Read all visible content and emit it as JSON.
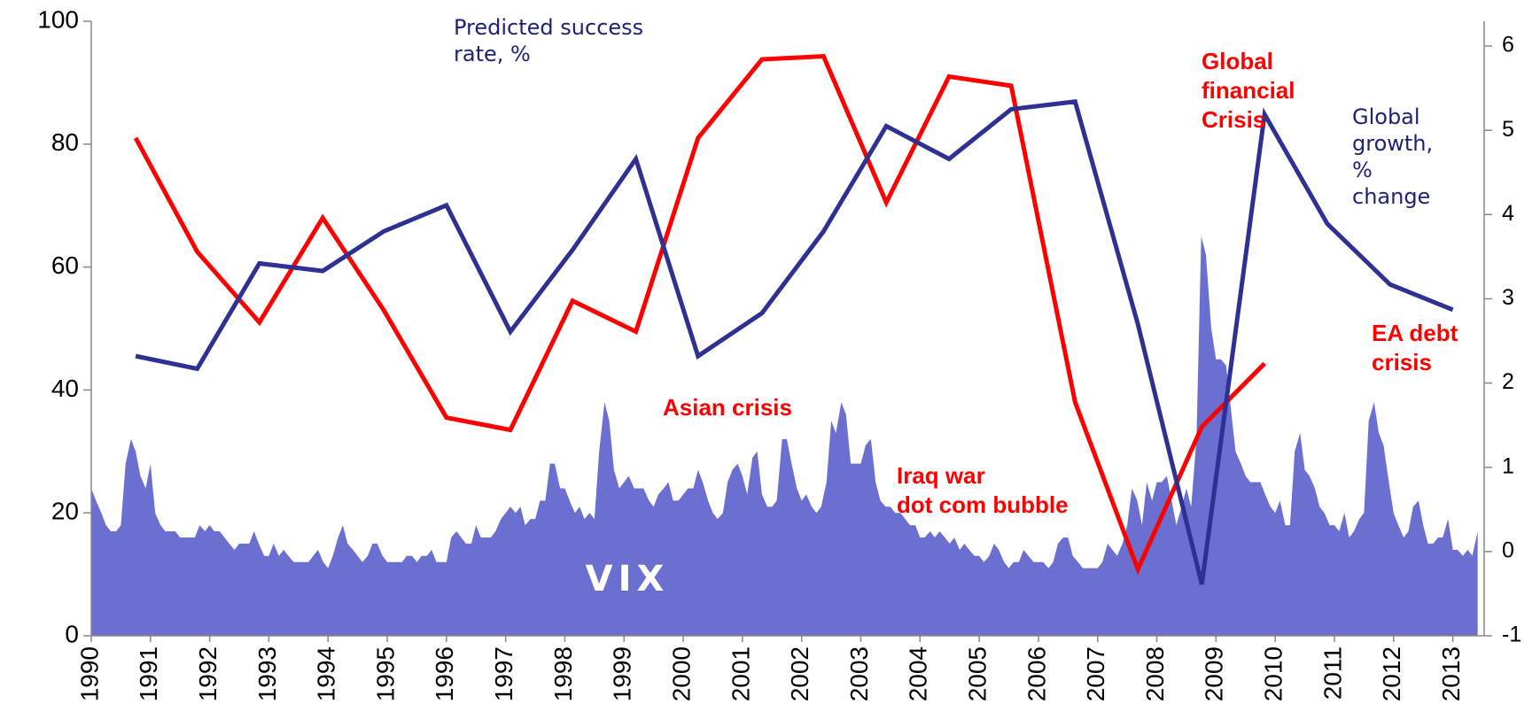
{
  "chart_data": {
    "type": "line",
    "xlim": [
      1990,
      2013.53
    ],
    "xticks": [
      1990,
      1991,
      1992,
      1993,
      1994,
      1995,
      1996,
      1997,
      1998,
      1999,
      2000,
      2001,
      2002,
      2003,
      2004,
      2005,
      2006,
      2007,
      2008,
      2009,
      2010,
      2011,
      2012,
      2013
    ],
    "ylim": [
      0,
      100
    ],
    "yticks": [
      0,
      20,
      40,
      60,
      80,
      100
    ],
    "y2lim": [
      -1,
      6
    ],
    "y2ticks": [
      -1,
      0,
      1,
      2,
      3,
      4,
      5,
      6
    ],
    "series": [
      {
        "name": "VIX",
        "type": "area",
        "color": "#6b6fcf",
        "x": [
          1990.0,
          1990.08,
          1990.17,
          1990.25,
          1990.33,
          1990.42,
          1990.5,
          1990.58,
          1990.67,
          1990.75,
          1990.83,
          1990.92,
          1991.0,
          1991.08,
          1991.17,
          1991.25,
          1991.33,
          1991.42,
          1991.5,
          1991.58,
          1991.67,
          1991.75,
          1991.83,
          1991.92,
          1992.0,
          1992.08,
          1992.17,
          1992.25,
          1992.33,
          1992.42,
          1992.5,
          1992.58,
          1992.67,
          1992.75,
          1992.83,
          1992.92,
          1993.0,
          1993.08,
          1993.17,
          1993.25,
          1993.33,
          1993.42,
          1993.5,
          1993.58,
          1993.67,
          1993.75,
          1993.83,
          1993.92,
          1994.0,
          1994.08,
          1994.17,
          1994.25,
          1994.33,
          1994.42,
          1994.5,
          1994.58,
          1994.67,
          1994.75,
          1994.83,
          1994.92,
          1995.0,
          1995.08,
          1995.17,
          1995.25,
          1995.33,
          1995.42,
          1995.5,
          1995.58,
          1995.67,
          1995.75,
          1995.83,
          1995.92,
          1996.0,
          1996.08,
          1996.17,
          1996.25,
          1996.33,
          1996.42,
          1996.5,
          1996.58,
          1996.67,
          1996.75,
          1996.83,
          1996.92,
          1997.0,
          1997.08,
          1997.17,
          1997.25,
          1997.33,
          1997.42,
          1997.5,
          1997.58,
          1997.67,
          1997.75,
          1997.83,
          1997.92,
          1998.0,
          1998.08,
          1998.17,
          1998.25,
          1998.33,
          1998.42,
          1998.5,
          1998.58,
          1998.67,
          1998.75,
          1998.83,
          1998.92,
          1999.0,
          1999.08,
          1999.17,
          1999.25,
          1999.33,
          1999.42,
          1999.5,
          1999.58,
          1999.67,
          1999.75,
          1999.83,
          1999.92,
          2000.0,
          2000.08,
          2000.17,
          2000.25,
          2000.33,
          2000.42,
          2000.5,
          2000.58,
          2000.67,
          2000.75,
          2000.83,
          2000.92,
          2001.0,
          2001.08,
          2001.17,
          2001.25,
          2001.33,
          2001.42,
          2001.5,
          2001.58,
          2001.67,
          2001.75,
          2001.83,
          2001.92,
          2002.0,
          2002.08,
          2002.17,
          2002.25,
          2002.33,
          2002.42,
          2002.5,
          2002.58,
          2002.67,
          2002.75,
          2002.83,
          2002.92,
          2003.0,
          2003.08,
          2003.17,
          2003.25,
          2003.33,
          2003.42,
          2003.5,
          2003.58,
          2003.67,
          2003.75,
          2003.83,
          2003.92,
          2004.0,
          2004.08,
          2004.17,
          2004.25,
          2004.33,
          2004.42,
          2004.5,
          2004.58,
          2004.67,
          2004.75,
          2004.83,
          2004.92,
          2005.0,
          2005.08,
          2005.17,
          2005.25,
          2005.33,
          2005.42,
          2005.5,
          2005.58,
          2005.67,
          2005.75,
          2005.83,
          2005.92,
          2006.0,
          2006.08,
          2006.17,
          2006.25,
          2006.33,
          2006.42,
          2006.5,
          2006.58,
          2006.67,
          2006.75,
          2006.83,
          2006.92,
          2007.0,
          2007.08,
          2007.17,
          2007.25,
          2007.33,
          2007.42,
          2007.5,
          2007.58,
          2007.67,
          2007.75,
          2007.83,
          2007.92,
          2008.0,
          2008.08,
          2008.17,
          2008.25,
          2008.33,
          2008.42,
          2008.5,
          2008.58,
          2008.67,
          2008.75,
          2008.83,
          2008.92,
          2009.0,
          2009.08,
          2009.17,
          2009.25,
          2009.33,
          2009.42,
          2009.5,
          2009.58,
          2009.67,
          2009.75,
          2009.83,
          2009.92,
          2010.0,
          2010.08,
          2010.17,
          2010.25,
          2010.33,
          2010.42,
          2010.5,
          2010.58,
          2010.67,
          2010.75,
          2010.83,
          2010.92,
          2011.0,
          2011.08,
          2011.17,
          2011.25,
          2011.33,
          2011.42,
          2011.5,
          2011.58,
          2011.67,
          2011.75,
          2011.83,
          2011.92,
          2012.0,
          2012.08,
          2012.17,
          2012.25,
          2012.33,
          2012.42,
          2012.5,
          2012.58,
          2012.67,
          2012.75,
          2012.83,
          2012.92,
          2013.0,
          2013.08,
          2013.17,
          2013.25,
          2013.33,
          2013.42
        ],
        "values": [
          24,
          22,
          20,
          18,
          17,
          17,
          18,
          28,
          32,
          30,
          26,
          24,
          28,
          20,
          18,
          17,
          17,
          17,
          16,
          16,
          16,
          16,
          18,
          17,
          18,
          17,
          17,
          16,
          15,
          14,
          15,
          15,
          15,
          17,
          15,
          13,
          13,
          15,
          13,
          14,
          13,
          12,
          12,
          12,
          12,
          13,
          14,
          12,
          11,
          13,
          16,
          18,
          15,
          14,
          13,
          12,
          13,
          15,
          15,
          13,
          12,
          12,
          12,
          12,
          13,
          13,
          12,
          13,
          13,
          14,
          12,
          12,
          12,
          16,
          17,
          16,
          15,
          15,
          18,
          16,
          16,
          16,
          17,
          19,
          20,
          21,
          20,
          21,
          18,
          19,
          19,
          22,
          22,
          28,
          28,
          24,
          24,
          22,
          20,
          21,
          19,
          20,
          19,
          30,
          38,
          35,
          27,
          24,
          25,
          26,
          24,
          24,
          24,
          22,
          21,
          23,
          24,
          25,
          22,
          22,
          23,
          24,
          24,
          27,
          25,
          22,
          20,
          19,
          20,
          25,
          27,
          28,
          26,
          23,
          29,
          30,
          23,
          21,
          21,
          22,
          32,
          32,
          28,
          24,
          22,
          23,
          21,
          20,
          21,
          25,
          35,
          33,
          38,
          36,
          28,
          28,
          28,
          31,
          32,
          25,
          22,
          21,
          21,
          20,
          20,
          19,
          18,
          18,
          16,
          16,
          17,
          16,
          17,
          16,
          15,
          16,
          14,
          15,
          14,
          13,
          13,
          12,
          13,
          15,
          14,
          12,
          11,
          12,
          12,
          14,
          13,
          12,
          12,
          12,
          11,
          12,
          15,
          16,
          16,
          13,
          12,
          11,
          11,
          11,
          11,
          12,
          15,
          14,
          13,
          15,
          18,
          24,
          22,
          18,
          25,
          22,
          25,
          25,
          26,
          22,
          18,
          21,
          24,
          21,
          32,
          65,
          62,
          50,
          45,
          45,
          44,
          37,
          30,
          28,
          26,
          25,
          25,
          25,
          23,
          21,
          20,
          22,
          18,
          18,
          30,
          33,
          27,
          26,
          24,
          21,
          20,
          18,
          18,
          17,
          20,
          16,
          17,
          19,
          20,
          35,
          38,
          33,
          31,
          25,
          20,
          18,
          16,
          17,
          21,
          22,
          18,
          15,
          15,
          16,
          16,
          19,
          14,
          14,
          13,
          14,
          13,
          17
        ]
      },
      {
        "name": "Predicted success rate, %",
        "type": "line",
        "color": "#ff0000",
        "x": [
          1990.75,
          1991.79,
          1992.84,
          1993.91,
          1994.94,
          1996.0,
          1997.08,
          1998.13,
          1999.2,
          2000.25,
          2001.33,
          2002.37,
          2003.43,
          2004.49,
          2005.54,
          2006.62,
          2007.68,
          2008.76,
          2009.82
        ],
        "values": [
          81,
          62.5,
          51,
          68,
          53,
          35.5,
          33.5,
          54.5,
          49.5,
          81,
          93.8,
          94.3,
          70.5,
          91,
          89.5,
          38,
          10.8,
          34,
          44.3
        ]
      },
      {
        "name": "Global growth, % change",
        "type": "line",
        "axis": "y2",
        "color": "#2e3192",
        "x": [
          1990.75,
          1991.79,
          1992.84,
          1993.91,
          1994.94,
          1996.0,
          1997.08,
          1998.13,
          1999.2,
          2000.25,
          2001.33,
          2002.37,
          2003.43,
          2004.49,
          2005.54,
          2006.62,
          2007.68,
          2008.76,
          2009.82,
          2010.88,
          2011.94,
          2013.0
        ],
        "values": [
          2.32,
          2.17,
          3.42,
          3.33,
          3.8,
          4.11,
          2.61,
          3.58,
          4.66,
          2.32,
          2.83,
          3.8,
          5.05,
          4.66,
          5.25,
          5.34,
          2.7,
          -0.39,
          5.19,
          3.89,
          3.17,
          2.87
        ]
      }
    ],
    "annotations": [
      [
        "Asian crisis"
      ],
      [
        "Iraq war",
        "dot com bubble"
      ],
      [
        "Global",
        "financial",
        "Crisis"
      ],
      [
        "EA  debt",
        "crisis"
      ]
    ]
  }
}
